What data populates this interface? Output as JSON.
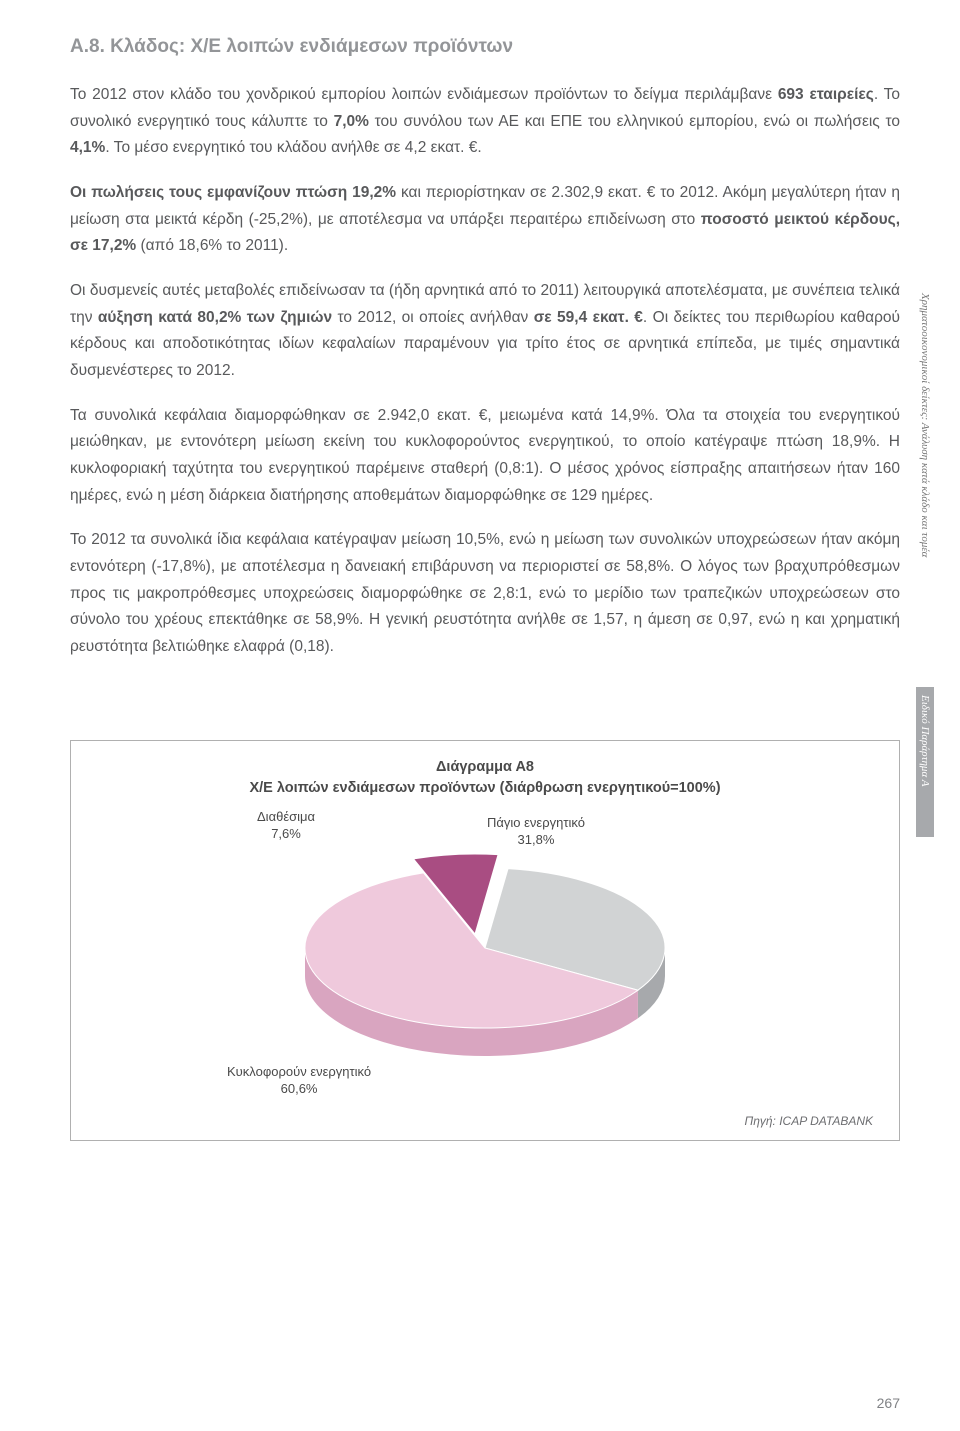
{
  "heading": "Α.8. Κλάδος: Χ/Ε λοιπών ενδιάμεσων προϊόντων",
  "paragraphs": {
    "p1a": "Το 2012 στον κλάδο του χονδρικού εμπορίου λοιπών ενδιάμεσων προϊόντων το δείγμα περιλάμβανε ",
    "p1b": "693 εταιρείες",
    "p1c": ". Το συνολικό ενεργητικό τους κάλυπτε το ",
    "p1d": "7,0%",
    "p1e": " του συνόλου των ΑΕ και ΕΠΕ του ελληνικού εμπορίου, ενώ οι πωλήσεις το ",
    "p1f": "4,1%",
    "p1g": ". Το μέσο ενεργητικό του κλάδου ανήλθε σε 4,2 εκατ. €.",
    "p2a": "Οι πωλήσεις τους εμφανίζουν πτώση 19,2%",
    "p2b": " και περιορίστηκαν σε 2.302,9 εκατ. € το 2012. Ακόμη μεγαλύτερη ήταν η μείωση στα μεικτά κέρδη (-25,2%), με αποτέλεσμα να υπάρξει περαιτέρω επιδείνωση στο ",
    "p2c": "ποσοστό μεικτού κέρδους, σε 17,2%",
    "p2d": " (από 18,6% το 2011).",
    "p3a": "Οι δυσμενείς αυτές μεταβολές επιδείνωσαν τα (ήδη αρνητικά από το 2011) λειτουργικά αποτελέσματα, με συνέπεια τελικά την ",
    "p3b": "αύξηση κατά 80,2% των ζημιών",
    "p3c": " το 2012, οι οποίες ανήλθαν ",
    "p3d": "σε 59,4 εκατ. €",
    "p3e": ". Οι δείκτες του περιθωρίου καθαρού κέρδους και αποδοτικότητας ιδίων κεφαλαίων παραμένουν για τρίτο έτος σε αρνητικά επίπεδα, με τιμές σημαντικά δυσμενέστερες το 2012.",
    "p4": "Τα συνολικά κεφάλαια διαμορφώθηκαν σε 2.942,0 εκατ. €, μειωμένα κατά 14,9%. Όλα τα στοιχεία του ενεργητικού μειώθηκαν, με εντονότερη μείωση εκείνη του κυκλοφορούντος ενεργητικού, το οποίο κατέγραψε πτώση 18,9%. Η κυκλοφοριακή ταχύτητα του ενεργητικού παρέμεινε σταθερή (0,8:1). Ο μέσος χρόνος είσπραξης απαιτήσεων ήταν 160 ημέρες, ενώ η μέση διάρκεια διατήρησης αποθεμάτων διαμορφώθηκε σε 129 ημέρες.",
    "p5": "Το 2012 τα συνολικά ίδια κεφάλαια κατέγραψαν μείωση 10,5%, ενώ η μείωση των συνολικών υποχρεώσεων ήταν ακόμη εντονότερη (-17,8%), με αποτέλεσμα η δανειακή επιβάρυνση να περιοριστεί σε 58,8%. Ο λόγος των βραχυπρόθεσμων προς τις μακροπρόθεσμες υποχρεώσεις διαμορφώθηκε σε 2,8:1, ενώ το μερίδιο των τραπεζικών υποχρεώσεων στο σύνολο του χρέους επεκτάθηκε σε 58,9%. Η γενική ρευστότητα ανήλθε σε 1,57, η άμεση σε 0,97, ενώ η και χρηματική ρευστότητα βελτιώθηκε ελαφρά (0,18)."
  },
  "sideTabs": {
    "light": "Χρηματοοικονομικοί δείκτες: Ανάλυση κατά κλάδο και τομέα",
    "dark": "Ειδικό Παράρτημα Α"
  },
  "chart": {
    "type": "pie",
    "title_line1": "Διάγραμμα Α8",
    "title_line2": "Χ/Ε λοιπών ενδιάμεσων προϊόντων (διάρθρωση ενεργητικού=100%)",
    "slices": [
      {
        "label": "Διαθέσιμα",
        "value": 7.6,
        "value_text": "7,6%",
        "color_top": "#a94d82",
        "color_side": "#7e3a62"
      },
      {
        "label": "Πάγιο ενεργητικό",
        "value": 31.8,
        "value_text": "31,8%",
        "color_top": "#d1d3d4",
        "color_side": "#a7a9ac"
      },
      {
        "label": "Κυκλοφορούν ενεργητικό",
        "value": 60.6,
        "value_text": "60,6%",
        "color_top": "#efc9dc",
        "color_side": "#d9a5c0"
      }
    ],
    "source": "Πηγή: ICAP DATABANK",
    "background_color": "#ffffff",
    "border_color": "#b0b0b0"
  },
  "pageNumber": "267"
}
